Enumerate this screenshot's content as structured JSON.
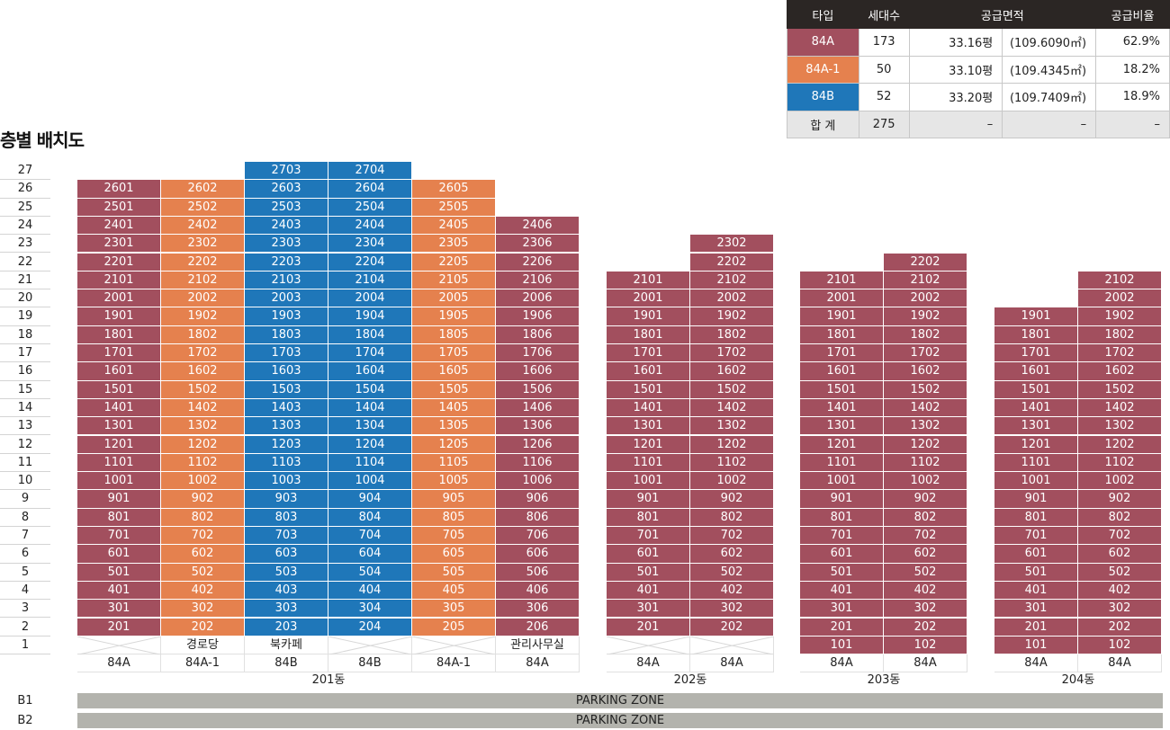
{
  "title": "층별 배치도",
  "legend": {
    "headers": [
      "타입",
      "세대수",
      "공급면적",
      "공급비율"
    ],
    "rows": [
      {
        "type": "84A",
        "units": "173",
        "pyeong": "33.16평",
        "sqm": "(109.6090㎡)",
        "ratio": "62.9%",
        "color": "#a24f5e"
      },
      {
        "type": "84A-1",
        "units": "50",
        "pyeong": "33.10평",
        "sqm": "(109.4345㎡)",
        "ratio": "18.2%",
        "color": "#e5814e"
      },
      {
        "type": "84B",
        "units": "52",
        "pyeong": "33.20평",
        "sqm": "(109.7409㎡)",
        "ratio": "18.9%",
        "color": "#1f77b9"
      }
    ],
    "total": {
      "label": "합 계",
      "units": "275",
      "pyeong": "–",
      "sqm": "–",
      "ratio": "–"
    }
  },
  "colors": {
    "84A": "#a24f5e",
    "84A-1": "#e5814e",
    "84B": "#1f77b9",
    "parking": "#b3b3ad"
  },
  "floors": [
    "27",
    "26",
    "25",
    "24",
    "23",
    "22",
    "21",
    "20",
    "19",
    "18",
    "17",
    "16",
    "15",
    "14",
    "13",
    "12",
    "11",
    "10",
    "9",
    "8",
    "7",
    "6",
    "5",
    "4",
    "3",
    "2",
    "1"
  ],
  "basements": [
    {
      "label": "B1",
      "zone": "PARKING ZONE"
    },
    {
      "label": "B2",
      "zone": "PARKING ZONE"
    }
  ],
  "buildings": [
    {
      "name": "201동",
      "columns": [
        {
          "type": "84A",
          "line": "01",
          "top": 26,
          "ground": ""
        },
        {
          "type": "84A-1",
          "line": "02",
          "top": 26,
          "ground": "경로당"
        },
        {
          "type": "84B",
          "line": "03",
          "top": 27,
          "ground": "북카페"
        },
        {
          "type": "84B",
          "line": "04",
          "top": 27,
          "ground": ""
        },
        {
          "type": "84A-1",
          "line": "05",
          "top": 26,
          "ground": ""
        },
        {
          "type": "84A",
          "line": "06",
          "top": 24,
          "ground": "관리사무실"
        }
      ]
    },
    {
      "name": "202동",
      "columns": [
        {
          "type": "84A",
          "line": "01",
          "top": 21,
          "ground": ""
        },
        {
          "type": "84A",
          "line": "02",
          "top": 23,
          "ground": ""
        }
      ]
    },
    {
      "name": "203동",
      "columns": [
        {
          "type": "84A",
          "line": "01",
          "top": 21,
          "ground": "101"
        },
        {
          "type": "84A",
          "line": "02",
          "top": 22,
          "ground": "102"
        }
      ]
    },
    {
      "name": "204동",
      "columns": [
        {
          "type": "84A",
          "line": "01",
          "top": 19,
          "ground": "101"
        },
        {
          "type": "84A",
          "line": "02",
          "top": 21,
          "ground": "102"
        }
      ]
    }
  ]
}
